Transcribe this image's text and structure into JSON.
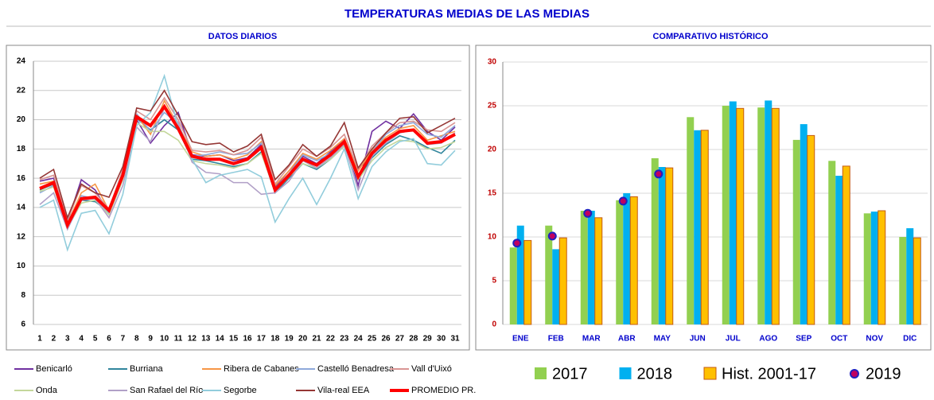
{
  "title": "TEMPERATURAS MEDIAS DE LAS MEDIAS",
  "chart_data": [
    {
      "type": "line",
      "title": "DATOS DIARIOS",
      "categories": [
        "1",
        "2",
        "3",
        "4",
        "5",
        "6",
        "7",
        "8",
        "9",
        "10",
        "11",
        "12",
        "13",
        "14",
        "15",
        "16",
        "17",
        "18",
        "19",
        "20",
        "21",
        "22",
        "23",
        "24",
        "25",
        "26",
        "27",
        "28",
        "29",
        "30",
        "31"
      ],
      "ylim": [
        6,
        24
      ],
      "yticks": [
        6,
        8,
        10,
        12,
        14,
        16,
        18,
        20,
        22,
        24
      ],
      "grid": true,
      "series": [
        {
          "name": "Benicarló",
          "color": "#7030a0",
          "values": [
            15.8,
            16.0,
            13.0,
            15.9,
            15.2,
            13.6,
            16.0,
            20.0,
            18.4,
            19.6,
            20.5,
            17.6,
            17.5,
            17.6,
            17.2,
            17.4,
            18.3,
            15.4,
            16.5,
            17.5,
            17.0,
            17.8,
            18.7,
            15.5,
            19.2,
            19.9,
            19.4,
            20.4,
            19.2,
            18.6,
            19.5
          ]
        },
        {
          "name": "Burriana",
          "color": "#31859c",
          "values": [
            15.2,
            15.6,
            12.7,
            14.5,
            14.4,
            13.7,
            16.0,
            20.1,
            19.3,
            20.0,
            19.3,
            17.3,
            17.2,
            17.0,
            16.8,
            17.0,
            17.8,
            15.0,
            16.0,
            17.0,
            16.6,
            17.3,
            18.2,
            15.9,
            17.4,
            18.3,
            18.9,
            18.6,
            18.1,
            17.7,
            18.6
          ]
        },
        {
          "name": "Ribera de Cabanes",
          "color": "#f79646",
          "values": [
            15.6,
            15.8,
            12.9,
            15.0,
            15.6,
            13.8,
            16.4,
            20.3,
            19.0,
            21.3,
            19.6,
            17.8,
            17.5,
            17.6,
            17.3,
            17.6,
            18.5,
            15.5,
            16.5,
            17.7,
            17.3,
            17.9,
            18.7,
            16.5,
            17.9,
            18.8,
            19.4,
            19.6,
            18.6,
            18.9,
            19.2
          ]
        },
        {
          "name": "Castelló Benadresa",
          "color": "#8ea9db",
          "values": [
            15.0,
            15.5,
            12.8,
            14.8,
            14.6,
            13.6,
            16.2,
            20.4,
            19.2,
            20.5,
            19.7,
            17.5,
            17.6,
            17.8,
            17.6,
            17.7,
            18.4,
            15.3,
            16.3,
            17.6,
            17.2,
            17.7,
            18.6,
            16.0,
            17.8,
            19.0,
            19.6,
            19.8,
            19.0,
            18.8,
            19.6
          ]
        },
        {
          "name": "Vall d'Uixó",
          "color": "#d99594",
          "values": [
            15.9,
            16.2,
            13.1,
            15.5,
            15.0,
            13.9,
            16.6,
            20.6,
            20.0,
            21.5,
            20.0,
            17.9,
            17.8,
            17.9,
            17.6,
            17.9,
            18.8,
            15.6,
            16.8,
            18.0,
            17.5,
            18.1,
            19.0,
            16.6,
            18.2,
            19.1,
            19.8,
            19.9,
            19.3,
            19.2,
            19.8
          ]
        },
        {
          "name": "Onda",
          "color": "#c4d79b",
          "values": [
            15.1,
            15.4,
            12.6,
            14.3,
            14.5,
            13.5,
            15.9,
            19.8,
            19.2,
            19.2,
            18.6,
            17.2,
            17.0,
            16.9,
            16.7,
            17.0,
            17.7,
            15.1,
            16.1,
            17.0,
            16.7,
            17.3,
            18.2,
            15.9,
            17.2,
            18.1,
            18.6,
            18.5,
            18.0,
            18.1,
            18.5
          ]
        },
        {
          "name": "San Rafael del Río",
          "color": "#b1a0c7",
          "values": [
            14.2,
            15.0,
            12.5,
            14.5,
            14.6,
            13.3,
            15.5,
            19.5,
            18.5,
            20.8,
            19.8,
            17.1,
            16.4,
            16.3,
            15.7,
            15.7,
            14.9,
            15.0,
            15.8,
            17.2,
            16.7,
            17.4,
            18.3,
            15.2,
            17.5,
            18.4,
            19.1,
            19.3,
            18.3,
            18.4,
            19.1
          ]
        },
        {
          "name": "Segorbe",
          "color": "#92cddc",
          "values": [
            14.0,
            14.5,
            11.1,
            13.6,
            13.8,
            12.2,
            14.9,
            19.6,
            20.5,
            23.0,
            19.5,
            17.3,
            15.7,
            16.2,
            16.4,
            16.6,
            16.1,
            13.0,
            14.6,
            16.0,
            14.2,
            16.0,
            18.0,
            14.6,
            16.8,
            17.8,
            18.5,
            18.7,
            17.0,
            16.9,
            17.9
          ]
        },
        {
          "name": "Vila-real EEA",
          "color": "#953735",
          "values": [
            16.0,
            16.6,
            13.3,
            15.6,
            15.0,
            14.7,
            16.8,
            20.8,
            20.6,
            22.0,
            20.3,
            18.5,
            18.3,
            18.4,
            17.8,
            18.2,
            19.0,
            15.9,
            16.9,
            18.3,
            17.5,
            18.2,
            19.8,
            16.7,
            18.0,
            19.1,
            20.1,
            20.2,
            19.1,
            19.6,
            20.1
          ]
        },
        {
          "name": "PROMEDIO PR.",
          "color": "#ff0000",
          "values": [
            15.3,
            15.7,
            12.8,
            14.6,
            14.7,
            13.8,
            16.2,
            20.2,
            19.6,
            20.9,
            19.4,
            17.5,
            17.3,
            17.3,
            17.0,
            17.3,
            18.1,
            15.2,
            16.2,
            17.3,
            16.9,
            17.6,
            18.5,
            16.1,
            17.7,
            18.6,
            19.2,
            19.3,
            18.4,
            18.5,
            19.0
          ]
        }
      ]
    },
    {
      "type": "bar",
      "title": "COMPARATIVO HISTÓRICO",
      "categories": [
        "ENE",
        "FEB",
        "MAR",
        "ABR",
        "MAY",
        "JUN",
        "JUL",
        "AGO",
        "SEP",
        "OCT",
        "NOV",
        "DIC"
      ],
      "ylim": [
        0,
        30
      ],
      "yticks": [
        0,
        5,
        10,
        15,
        20,
        25,
        30
      ],
      "grid": true,
      "series": [
        {
          "name": "2017",
          "color": "#92d050",
          "values": [
            8.8,
            11.3,
            13.0,
            14.2,
            19.0,
            23.7,
            25.0,
            24.8,
            21.1,
            18.7,
            12.7,
            10.0
          ]
        },
        {
          "name": "2018",
          "color": "#00b0f0",
          "values": [
            11.3,
            8.6,
            13.0,
            15.0,
            18.0,
            22.2,
            25.5,
            25.6,
            22.9,
            17.0,
            12.9,
            11.0
          ]
        },
        {
          "name": "Hist. 2001-17",
          "color": "#ffc000",
          "values": [
            9.6,
            9.9,
            12.2,
            14.6,
            17.9,
            22.2,
            24.7,
            24.7,
            21.6,
            18.1,
            13.0,
            9.9
          ]
        },
        {
          "name": "2019",
          "type": "scatter",
          "color": "#c00060",
          "values": [
            9.3,
            10.1,
            12.7,
            14.1,
            17.2,
            null,
            null,
            null,
            null,
            null,
            null,
            null
          ]
        }
      ]
    }
  ]
}
